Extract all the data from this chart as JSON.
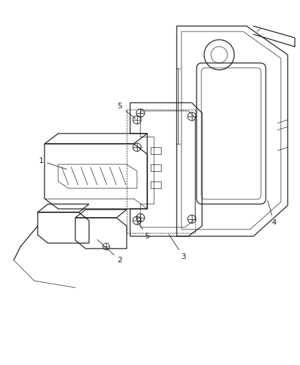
{
  "background_color": "#ffffff",
  "line_color": "#1a1a1a",
  "label_color": "#1a1a1a",
  "figure_size": [
    4.38,
    5.33
  ],
  "dpi": 100,
  "lw_main": 0.9,
  "lw_thin": 0.5,
  "label_fs": 8
}
